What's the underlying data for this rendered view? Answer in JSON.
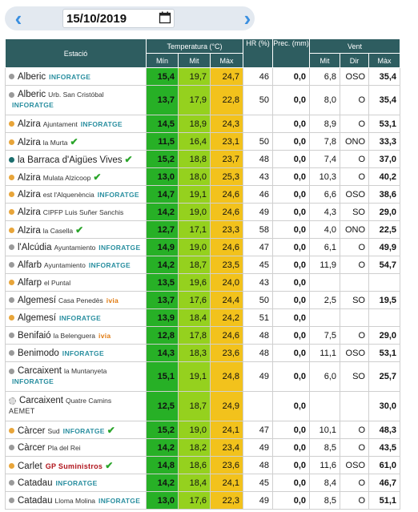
{
  "date_nav": {
    "date": "15/10/2019",
    "prev_icon": "chevron-left-icon",
    "next_icon": "chevron-right-icon",
    "calendar_icon": "calendar-icon",
    "accent": "#3a8fe0"
  },
  "headers": {
    "station": "Estació",
    "temp": "Temperatura (°C)",
    "hr": "HR (%)",
    "prec": "Prec. (mm)",
    "wind": "Vent",
    "min": "Mín",
    "mit": "Mit",
    "max": "Màx",
    "wmit": "Mit",
    "wdir": "Dir",
    "wmax": "Màx"
  },
  "colors": {
    "header_bg": "#2e5d60",
    "min_bg": "#27b026",
    "mit_bg": "#95d11e",
    "max_bg": "#f2c21c"
  },
  "rows": [
    {
      "name": "Alberic",
      "sub": "",
      "tag": "INFORATGE",
      "tag_type": "info",
      "check": false,
      "dot": "#9a9a9a",
      "min": "15,4",
      "mit": "19,7",
      "max": "24,7",
      "hr": "46",
      "prec": "0,0",
      "wmit": "6,8",
      "wdir": "OSO",
      "wmax": "35,4",
      "two_line": false
    },
    {
      "name": "Alberic",
      "sub": "Urb. San Cristóbal",
      "tag": "INFORATGE",
      "tag_type": "info",
      "check": false,
      "dot": "#9a9a9a",
      "min": "13,7",
      "mit": "17,9",
      "max": "22,8",
      "hr": "50",
      "prec": "0,0",
      "wmit": "8,0",
      "wdir": "O",
      "wmax": "35,4",
      "two_line": true
    },
    {
      "name": "Alzira",
      "sub": "Ajuntament",
      "tag": "INFORATGE",
      "tag_type": "info",
      "check": false,
      "dot": "#e8a53a",
      "min": "14,5",
      "mit": "18,9",
      "max": "24,3",
      "hr": "",
      "prec": "0,0",
      "wmit": "8,9",
      "wdir": "O",
      "wmax": "53,1",
      "two_line": false
    },
    {
      "name": "Alzira",
      "sub": "la Murta",
      "tag": "",
      "tag_type": "",
      "check": true,
      "dot": "#e8a53a",
      "min": "11,5",
      "mit": "16,4",
      "max": "23,1",
      "hr": "50",
      "prec": "0,0",
      "wmit": "7,8",
      "wdir": "ONO",
      "wmax": "33,3",
      "two_line": false
    },
    {
      "name": "la Barraca d'Aigües Vives",
      "sub": "",
      "tag": "",
      "tag_type": "",
      "check": true,
      "dot": "#1c6e6e",
      "min": "15,2",
      "mit": "18,8",
      "max": "23,7",
      "hr": "48",
      "prec": "0,0",
      "wmit": "7,4",
      "wdir": "O",
      "wmax": "37,0",
      "two_line": false
    },
    {
      "name": "Alzira",
      "sub": "Mulata Alzicoop",
      "tag": "",
      "tag_type": "",
      "check": true,
      "dot": "#e8a53a",
      "min": "13,0",
      "mit": "18,0",
      "max": "25,3",
      "hr": "43",
      "prec": "0,0",
      "wmit": "10,3",
      "wdir": "O",
      "wmax": "40,2",
      "two_line": false
    },
    {
      "name": "Alzira",
      "sub": "est l'Alquenència",
      "tag": "INFORATGE",
      "tag_type": "info",
      "check": false,
      "dot": "#e8a53a",
      "min": "14,7",
      "mit": "19,1",
      "max": "24,6",
      "hr": "46",
      "prec": "0,0",
      "wmit": "6,6",
      "wdir": "OSO",
      "wmax": "38,6",
      "two_line": false
    },
    {
      "name": "Alzira",
      "sub": "CIPFP Luis Suñer Sanchis",
      "tag": "",
      "tag_type": "",
      "check": false,
      "dot": "#e8a53a",
      "min": "14,2",
      "mit": "19,0",
      "max": "24,6",
      "hr": "49",
      "prec": "0,0",
      "wmit": "4,3",
      "wdir": "SO",
      "wmax": "29,0",
      "two_line": false
    },
    {
      "name": "Alzira",
      "sub": "la Casella",
      "tag": "",
      "tag_type": "",
      "check": true,
      "dot": "#e8a53a",
      "min": "12,7",
      "mit": "17,1",
      "max": "23,3",
      "hr": "58",
      "prec": "0,0",
      "wmit": "4,0",
      "wdir": "ONO",
      "wmax": "22,5",
      "two_line": false
    },
    {
      "name": "l'Alcúdia",
      "sub": "Ayuntamiento",
      "tag": "INFORATGE",
      "tag_type": "info",
      "check": false,
      "dot": "#9a9a9a",
      "min": "14,9",
      "mit": "19,0",
      "max": "24,6",
      "hr": "47",
      "prec": "0,0",
      "wmit": "6,1",
      "wdir": "O",
      "wmax": "49,9",
      "two_line": false
    },
    {
      "name": "Alfarb",
      "sub": "Ayuntamiento",
      "tag": "INFORATGE",
      "tag_type": "info",
      "check": false,
      "dot": "#9a9a9a",
      "min": "14,2",
      "mit": "18,7",
      "max": "23,5",
      "hr": "45",
      "prec": "0,0",
      "wmit": "11,9",
      "wdir": "O",
      "wmax": "54,7",
      "two_line": false
    },
    {
      "name": "Alfarp",
      "sub": "el Puntal",
      "tag": "",
      "tag_type": "",
      "check": false,
      "dot": "#e8a53a",
      "min": "13,5",
      "mit": "19,6",
      "max": "24,0",
      "hr": "43",
      "prec": "0,0",
      "wmit": "",
      "wdir": "",
      "wmax": "",
      "two_line": false
    },
    {
      "name": "Algemesí",
      "sub": "Casa Penedès",
      "tag": "ivia",
      "tag_type": "ivia",
      "check": false,
      "dot": "#9a9a9a",
      "min": "13,7",
      "mit": "17,6",
      "max": "24,4",
      "hr": "50",
      "prec": "0,0",
      "wmit": "2,5",
      "wdir": "SO",
      "wmax": "19,5",
      "two_line": false
    },
    {
      "name": "Algemesí",
      "sub": "",
      "tag": "INFORATGE",
      "tag_type": "info",
      "check": false,
      "dot": "#e8a53a",
      "min": "13,9",
      "mit": "18,4",
      "max": "24,2",
      "hr": "51",
      "prec": "0,0",
      "wmit": "",
      "wdir": "",
      "wmax": "",
      "two_line": false
    },
    {
      "name": "Benifaió",
      "sub": "la Belenguera",
      "tag": "ivia",
      "tag_type": "ivia",
      "check": false,
      "dot": "#9a9a9a",
      "min": "12,8",
      "mit": "17,8",
      "max": "24,6",
      "hr": "48",
      "prec": "0,0",
      "wmit": "7,5",
      "wdir": "O",
      "wmax": "29,0",
      "two_line": false
    },
    {
      "name": "Benimodo",
      "sub": "",
      "tag": "INFORATGE",
      "tag_type": "info",
      "check": false,
      "dot": "#9a9a9a",
      "min": "14,3",
      "mit": "18,3",
      "max": "23,6",
      "hr": "48",
      "prec": "0,0",
      "wmit": "11,1",
      "wdir": "OSO",
      "wmax": "53,1",
      "two_line": false
    },
    {
      "name": "Carcaixent",
      "sub": "la Muntanyeta",
      "tag": "INFORATGE",
      "tag_type": "info",
      "check": false,
      "dot": "#9a9a9a",
      "min": "15,1",
      "mit": "19,1",
      "max": "24,8",
      "hr": "49",
      "prec": "0,0",
      "wmit": "6,0",
      "wdir": "SO",
      "wmax": "25,7",
      "two_line": true
    },
    {
      "name": "Carcaixent",
      "sub": "Quatre Camins",
      "tag": "AEMET",
      "tag_type": "aemet",
      "check": false,
      "dot": "#dcdcdc",
      "min": "12,5",
      "mit": "18,7",
      "max": "24,9",
      "hr": "",
      "prec": "0,0",
      "wmit": "",
      "wdir": "",
      "wmax": "30,0",
      "two_line": true
    },
    {
      "name": "Càrcer",
      "sub": "Sud",
      "tag": "INFORATGE",
      "tag_type": "info",
      "check": true,
      "dot": "#e8a53a",
      "min": "15,2",
      "mit": "19,0",
      "max": "24,1",
      "hr": "47",
      "prec": "0,0",
      "wmit": "10,1",
      "wdir": "O",
      "wmax": "48,3",
      "two_line": false
    },
    {
      "name": "Càrcer",
      "sub": "Pla del Rei",
      "tag": "",
      "tag_type": "",
      "check": false,
      "dot": "#9a9a9a",
      "min": "14,2",
      "mit": "18,2",
      "max": "23,4",
      "hr": "49",
      "prec": "0,0",
      "wmit": "8,5",
      "wdir": "O",
      "wmax": "43,5",
      "two_line": false
    },
    {
      "name": "Carlet",
      "sub": "",
      "tag": "GP Suministros",
      "tag_type": "gp",
      "check": true,
      "dot": "#e8a53a",
      "min": "14,8",
      "mit": "18,6",
      "max": "23,6",
      "hr": "48",
      "prec": "0,0",
      "wmit": "11,6",
      "wdir": "OSO",
      "wmax": "61,0",
      "two_line": false
    },
    {
      "name": "Catadau",
      "sub": "",
      "tag": "INFORATGE",
      "tag_type": "info",
      "check": false,
      "dot": "#9a9a9a",
      "min": "14,2",
      "mit": "18,4",
      "max": "24,1",
      "hr": "45",
      "prec": "0,0",
      "wmit": "8,4",
      "wdir": "O",
      "wmax": "46,7",
      "two_line": false
    },
    {
      "name": "Catadau",
      "sub": "Lloma Molina",
      "tag": "INFORATGE",
      "tag_type": "info",
      "check": false,
      "dot": "#9a9a9a",
      "min": "13,0",
      "mit": "17,6",
      "max": "22,3",
      "hr": "49",
      "prec": "0,0",
      "wmit": "8,5",
      "wdir": "O",
      "wmax": "51,1",
      "two_line": false
    }
  ]
}
